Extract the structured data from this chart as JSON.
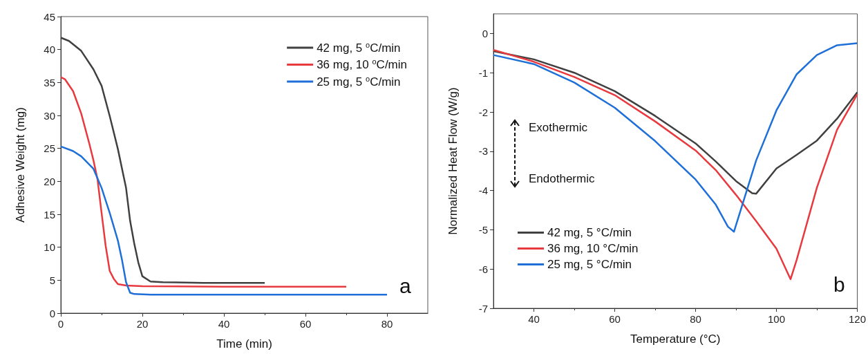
{
  "chart_data": [
    {
      "type": "line",
      "xlabel": "Time (min)",
      "ylabel": "Adhesive Weight (mg)",
      "xlim": [
        0,
        90
      ],
      "xticks": [
        0,
        20,
        40,
        60,
        80
      ],
      "ylim": [
        0,
        45
      ],
      "yticks": [
        0,
        5,
        10,
        15,
        20,
        25,
        30,
        35,
        40,
        45
      ],
      "grid": false,
      "legend": "top right",
      "marker": "none",
      "annotations": [
        "a"
      ],
      "series": [
        {
          "name": "42 mg, 5 $^{o}$C/min",
          "color": "#404040",
          "x": [
            0,
            2,
            5,
            8,
            10,
            12,
            14,
            16,
            17,
            18,
            19,
            20,
            22,
            25,
            35,
            50
          ],
          "values": [
            41.8,
            41.3,
            39.8,
            37,
            34.5,
            29.9,
            24.9,
            19,
            14,
            10.6,
            7.7,
            5.6,
            4.8,
            4.7,
            4.6,
            4.6
          ]
        },
        {
          "name": "36 mg, 10 $^{o}$C/min",
          "color": "#e8393f",
          "x": [
            0,
            1,
            3,
            5,
            7,
            8,
            9,
            10,
            11,
            12,
            13,
            14,
            16,
            20,
            40,
            70
          ],
          "values": [
            35.8,
            35.5,
            33.7,
            30.3,
            25.7,
            23.2,
            20.3,
            15.2,
            10.2,
            6.4,
            5.2,
            4.4,
            4.2,
            4.1,
            4.0,
            4.0
          ]
        },
        {
          "name": "25 mg, 5 $^{o}$C/min",
          "color": "#1f6fd8",
          "x": [
            0,
            3,
            5,
            8,
            10,
            12,
            14,
            15,
            16,
            17,
            18,
            22,
            40,
            80
          ],
          "values": [
            25.3,
            24.6,
            23.8,
            21.9,
            19,
            15.2,
            11,
            8.1,
            4.7,
            3.1,
            2.9,
            2.8,
            2.8,
            2.8
          ]
        }
      ]
    },
    {
      "type": "line",
      "xlabel": "Temperature (°C)",
      "ylabel": "Normalized Heat Flow (W/g)",
      "xlim": [
        30,
        120
      ],
      "xticks": [
        40,
        60,
        80,
        100,
        120
      ],
      "ylim": [
        -7,
        0.5
      ],
      "yticks": [
        -7,
        -6,
        -5,
        -4,
        -3,
        -2,
        -1,
        0
      ],
      "grid": false,
      "legend": "bottom left",
      "marker": "none",
      "annotations": [
        "Exothermic",
        "Endothermic",
        "b"
      ],
      "series": [
        {
          "name": "42 mg, 5 °C/min",
          "color": "#404040",
          "x": [
            30,
            40,
            50,
            60,
            70,
            80,
            85,
            90,
            94,
            95,
            100,
            105,
            110,
            115,
            120
          ],
          "values": [
            -0.45,
            -0.66,
            -1.0,
            -1.47,
            -2.1,
            -2.8,
            -3.26,
            -3.76,
            -4.07,
            -4.08,
            -3.44,
            -3.09,
            -2.73,
            -2.17,
            -1.5
          ]
        },
        {
          "name": "36 mg, 10 °C/min",
          "color": "#e8393f",
          "x": [
            30,
            40,
            50,
            60,
            70,
            80,
            85,
            90,
            95,
            100,
            103.5,
            105,
            110,
            115,
            120
          ],
          "values": [
            -0.42,
            -0.72,
            -1.11,
            -1.57,
            -2.24,
            -2.98,
            -3.48,
            -4.11,
            -4.78,
            -5.48,
            -6.26,
            -5.77,
            -3.93,
            -2.45,
            -1.55
          ]
        },
        {
          "name": "25 mg, 5 °C/min",
          "color": "#1f6fd8",
          "x": [
            30,
            40,
            50,
            60,
            70,
            80,
            85,
            88,
            89.5,
            92,
            95,
            100,
            105,
            110,
            115,
            120
          ],
          "values": [
            -0.55,
            -0.78,
            -1.25,
            -1.89,
            -2.74,
            -3.72,
            -4.36,
            -4.92,
            -5.05,
            -4.22,
            -3.23,
            -1.96,
            -1.04,
            -0.55,
            -0.3,
            -0.25
          ]
        }
      ]
    }
  ]
}
